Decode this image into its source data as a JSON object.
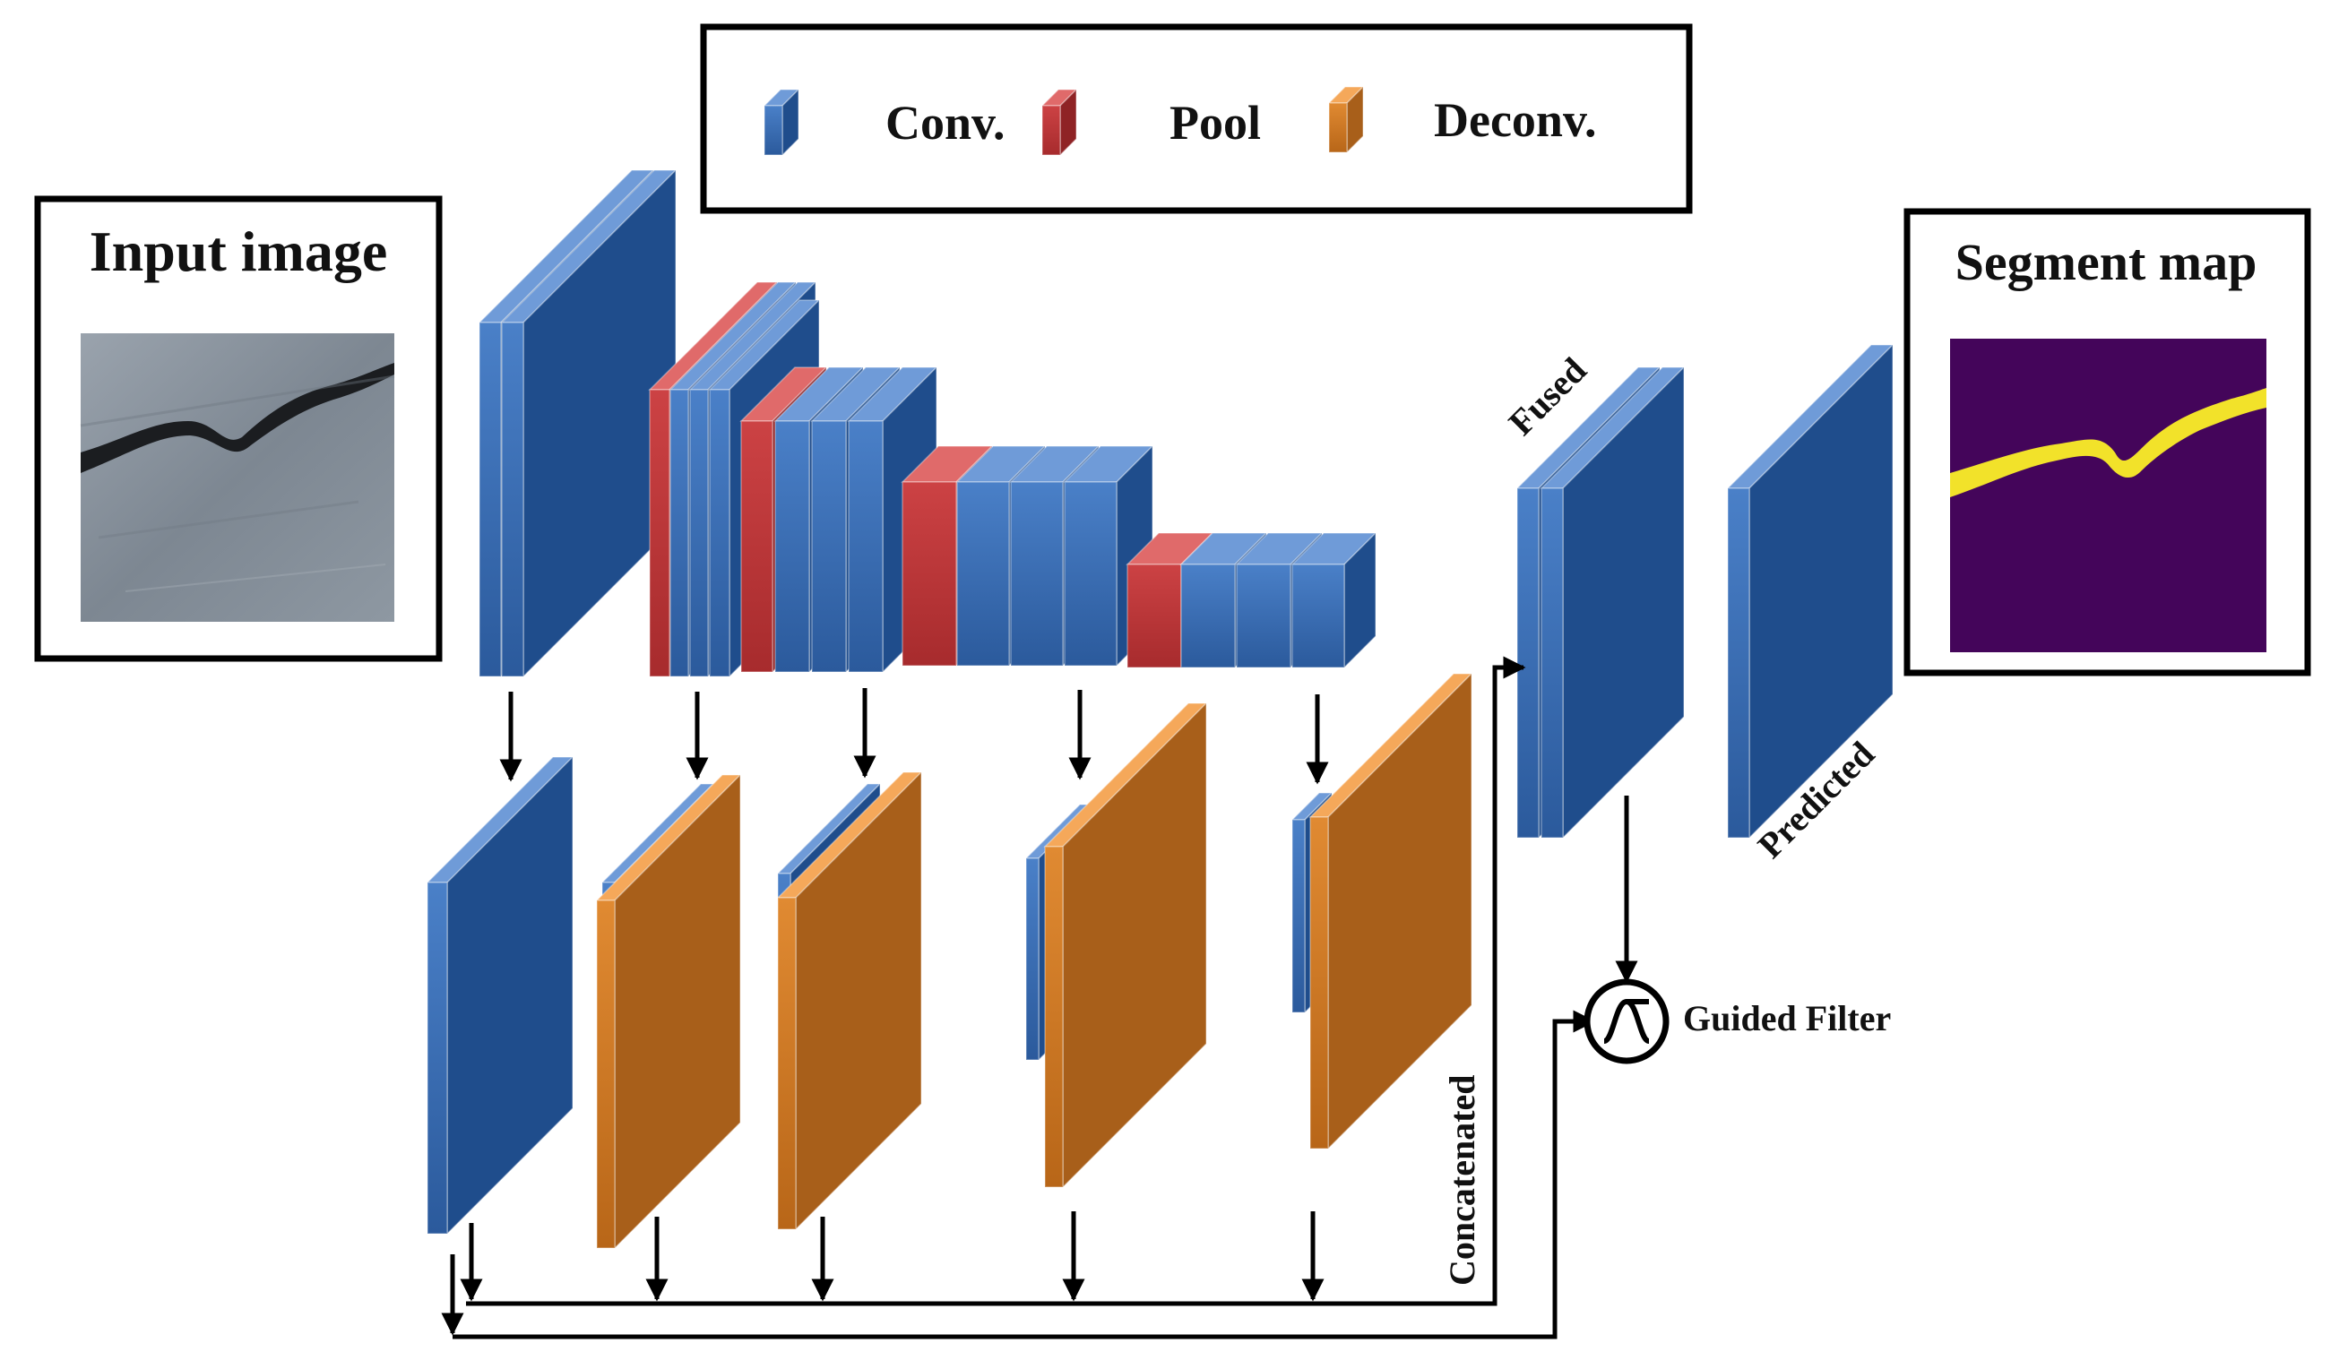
{
  "legend": {
    "conv_label": "Conv.",
    "pool_label": "Pool",
    "deconv_label": "Deconv."
  },
  "input_panel": {
    "title": "Input image"
  },
  "output_panel": {
    "title": "Segment map"
  },
  "labels": {
    "fused": "Fused",
    "predicted": "Predicted",
    "concatenated": "Concatenated",
    "guided_filter": "Guided Filter"
  },
  "colors": {
    "conv_front": "#3a6fba",
    "conv_side": "#1f4d8c",
    "conv_top": "#6f9bd8",
    "pool_front": "#c0393a",
    "pool_side": "#8f2325",
    "pool_top": "#e06a6a",
    "deconv_front": "#d9822e",
    "deconv_side": "#a85f1a",
    "deconv_top": "#f5a85a",
    "seg_background": "#44055a",
    "seg_crack": "#f2e22a"
  },
  "icons": {
    "guided_filter": "sine-wave-circle-icon",
    "arrow": "arrow-down-icon"
  }
}
